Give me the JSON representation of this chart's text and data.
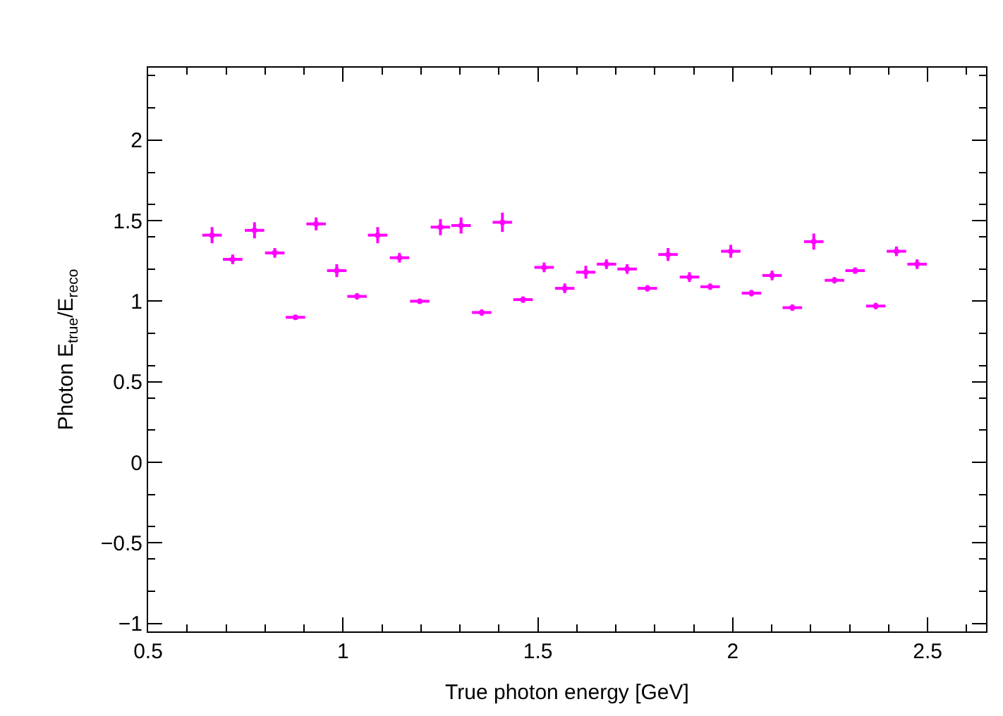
{
  "chart_data": {
    "type": "scatter",
    "xlabel": "True photon energy [GeV]",
    "ylabel": "Photon E$_{true}$/E$_{reco}$",
    "x": [
      0.664,
      0.717,
      0.773,
      0.825,
      0.878,
      0.931,
      0.984,
      1.036,
      1.089,
      1.145,
      1.197,
      1.25,
      1.303,
      1.356,
      1.409,
      1.462,
      1.516,
      1.569,
      1.623,
      1.676,
      1.729,
      1.781,
      1.834,
      1.889,
      1.942,
      1.995,
      2.048,
      2.101,
      2.153,
      2.208,
      2.261,
      2.314,
      2.367,
      2.42,
      2.473
    ],
    "series": [
      {
        "color": "#ff00ff",
        "values": [
          1.41,
          1.26,
          1.44,
          1.3,
          0.9,
          1.48,
          1.19,
          1.03,
          1.41,
          1.27,
          1.0,
          1.46,
          1.47,
          0.93,
          1.49,
          1.01,
          1.21,
          1.08,
          1.18,
          1.23,
          1.2,
          1.08,
          1.29,
          1.15,
          1.09,
          1.31,
          1.05,
          1.16,
          0.96,
          1.37,
          1.13,
          1.19,
          0.97,
          1.31,
          1.23
        ],
        "errors": [
          0.05,
          0.03,
          0.05,
          0.03,
          0.01,
          0.04,
          0.04,
          0.02,
          0.05,
          0.03,
          0.01,
          0.05,
          0.05,
          0.02,
          0.06,
          0.02,
          0.03,
          0.03,
          0.04,
          0.03,
          0.03,
          0.02,
          0.04,
          0.03,
          0.02,
          0.04,
          0.02,
          0.03,
          0.02,
          0.05,
          0.02,
          0.02,
          0.02,
          0.03,
          0.03
        ],
        "xerrors": [
          0.025,
          0.025,
          0.025,
          0.025,
          0.025,
          0.025,
          0.025,
          0.025,
          0.025,
          0.025,
          0.025,
          0.025,
          0.025,
          0.025,
          0.025,
          0.025,
          0.025,
          0.025,
          0.025,
          0.025,
          0.025,
          0.025,
          0.025,
          0.025,
          0.025,
          0.025,
          0.025,
          0.025,
          0.025,
          0.025,
          0.025,
          0.025,
          0.025,
          0.025,
          0.025
        ]
      }
    ],
    "xlim": [
      0.5,
      2.65
    ],
    "ylim": [
      -1.05,
      2.45
    ],
    "xticks": [
      0.5,
      1,
      1.5,
      2,
      2.5
    ],
    "yticks": [
      -1,
      -0.5,
      0,
      0.5,
      1,
      1.5,
      2
    ]
  }
}
